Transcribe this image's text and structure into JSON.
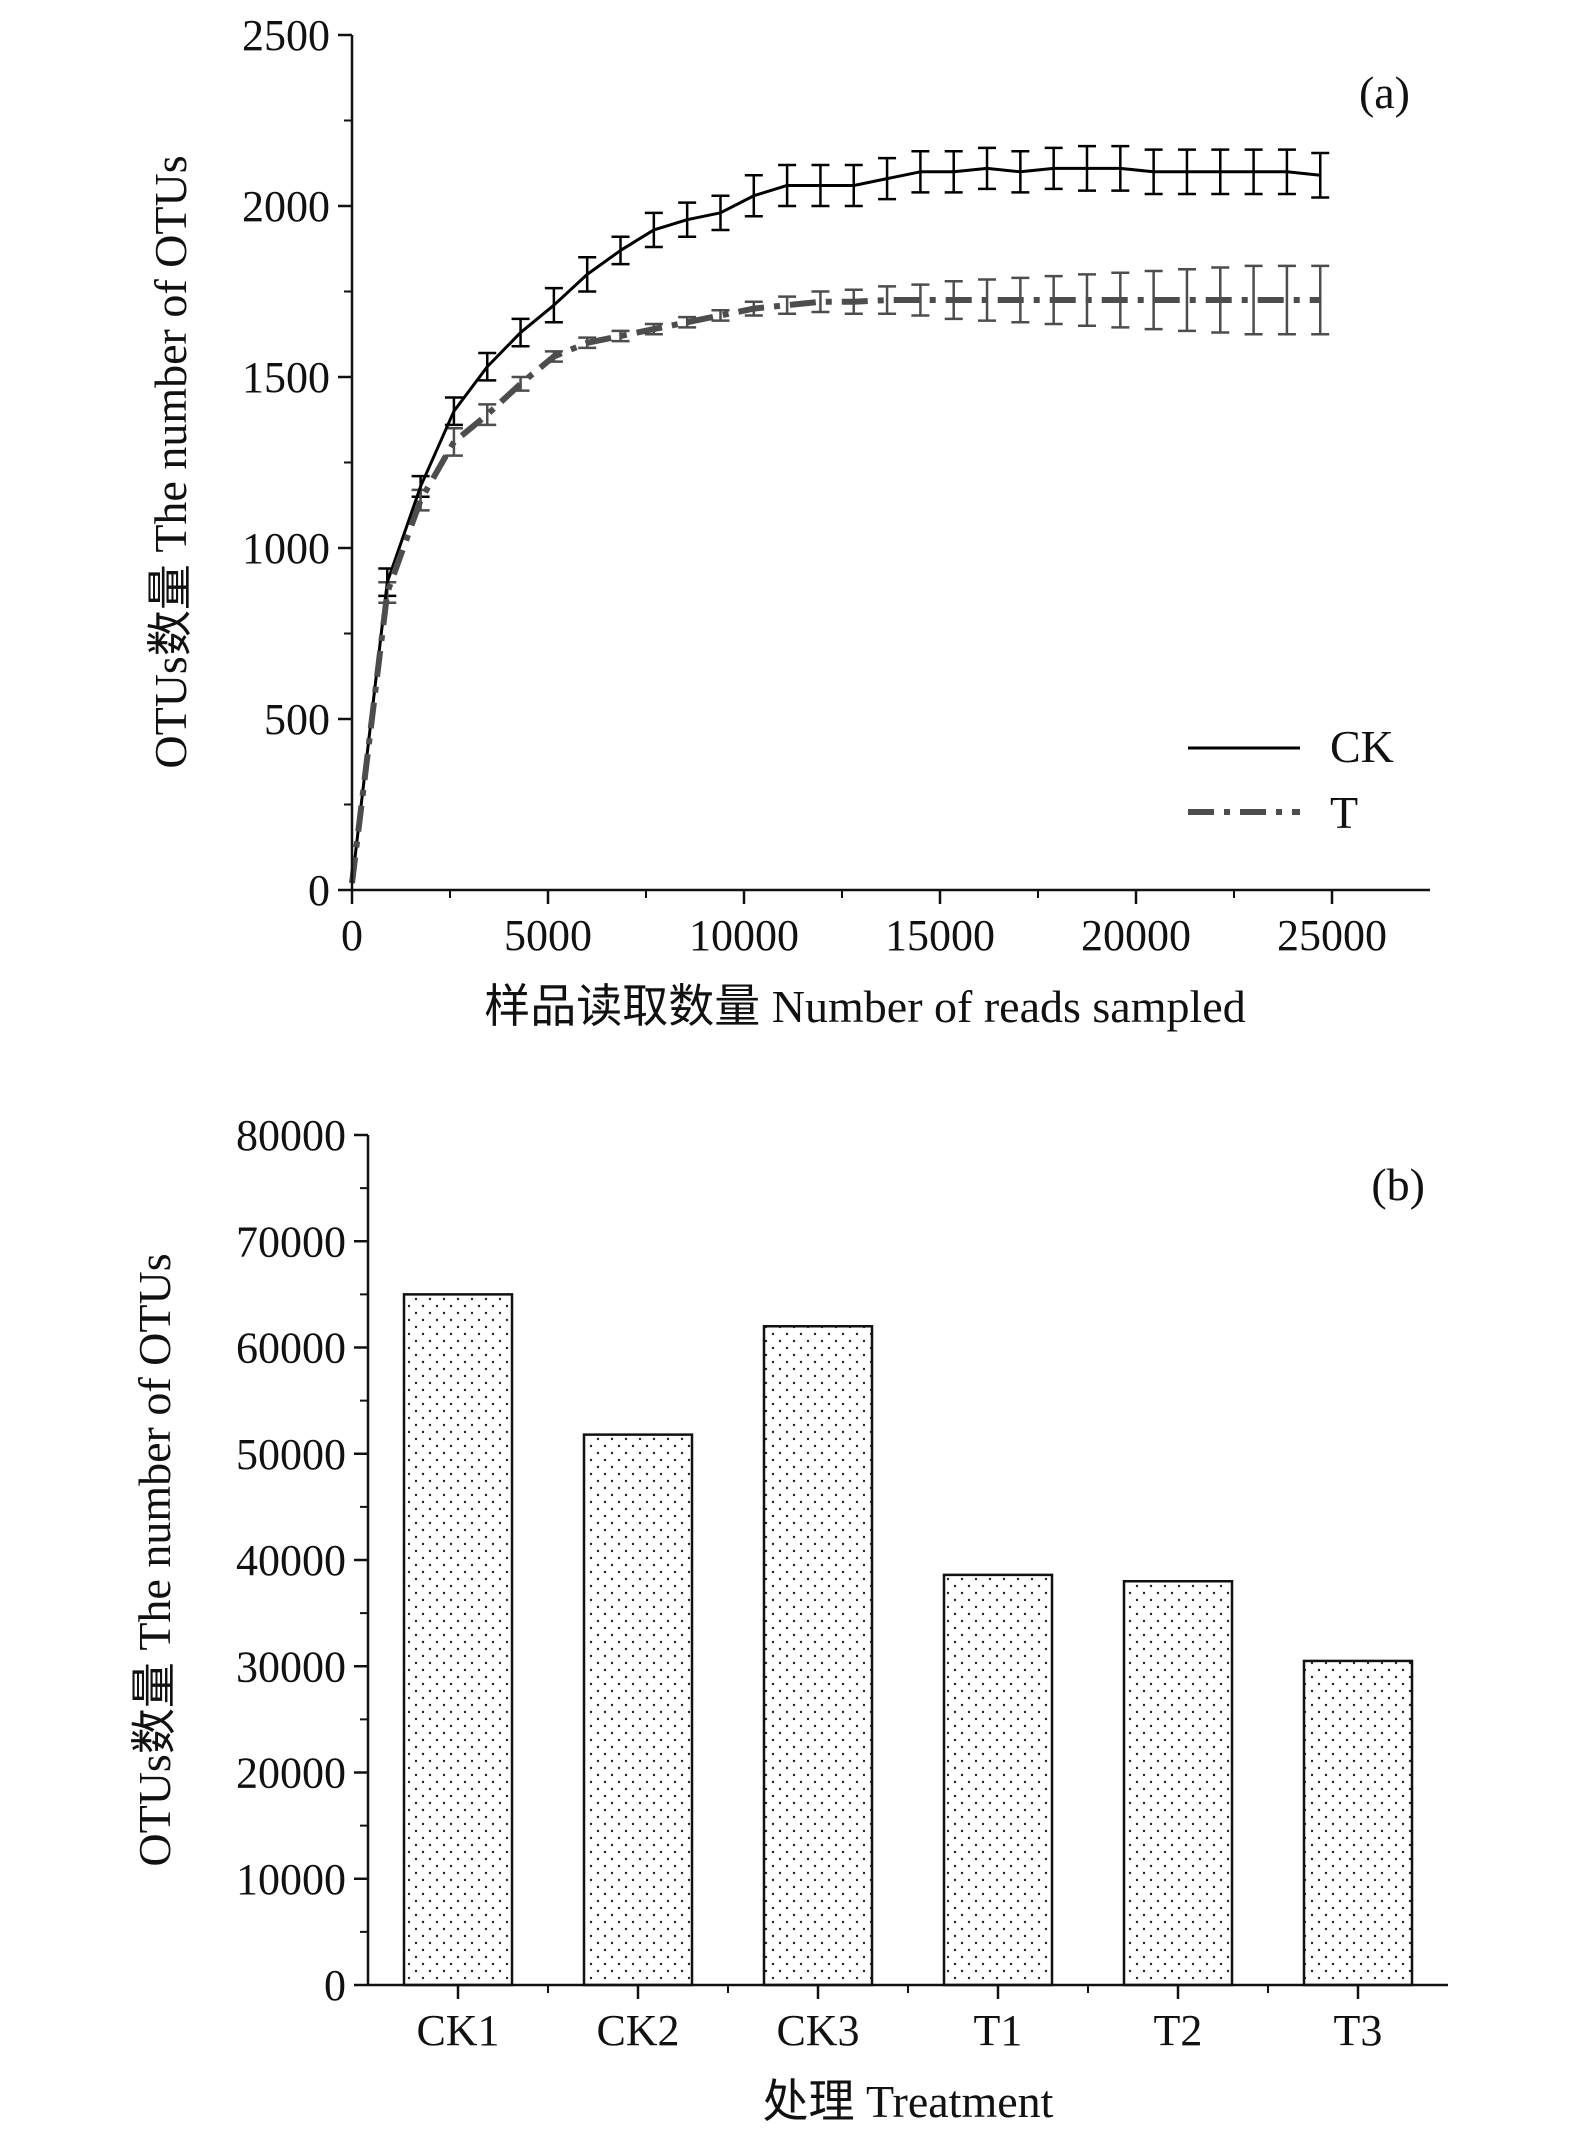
{
  "chart_data": [
    {
      "type": "line",
      "panel_label": "(a)",
      "xlabel": "样品读取数量 Number of reads sampled",
      "ylabel": "OTUs数量 The number of OTUs",
      "xlim": [
        0,
        27500
      ],
      "ylim": [
        0,
        2500
      ],
      "x_ticks": [
        0,
        5000,
        10000,
        15000,
        20000,
        25000
      ],
      "y_ticks": [
        0,
        500,
        1000,
        1500,
        2000,
        2500
      ],
      "legend_position": "bottom-right",
      "series": [
        {
          "name": "CK",
          "line_style": "solid",
          "color": "#000000",
          "x": [
            0,
            900,
            1750,
            2600,
            3450,
            4300,
            5150,
            6000,
            6850,
            7700,
            8550,
            9400,
            10250,
            11100,
            11950,
            12800,
            13650,
            14500,
            15350,
            16200,
            17050,
            17900,
            18750,
            19600,
            20450,
            21300,
            22150,
            23000,
            23850,
            24700
          ],
          "y": [
            20,
            900,
            1180,
            1400,
            1530,
            1630,
            1710,
            1800,
            1870,
            1930,
            1960,
            1980,
            2030,
            2060,
            2060,
            2060,
            2080,
            2100,
            2100,
            2110,
            2100,
            2110,
            2110,
            2110,
            2100,
            2100,
            2100,
            2100,
            2100,
            2090
          ],
          "error": [
            0,
            40,
            30,
            40,
            40,
            40,
            50,
            50,
            40,
            50,
            50,
            50,
            60,
            60,
            60,
            60,
            60,
            60,
            60,
            60,
            60,
            60,
            65,
            65,
            65,
            65,
            65,
            65,
            65,
            65
          ]
        },
        {
          "name": "T",
          "line_style": "dash-dot",
          "color": "#4d4d4d",
          "x": [
            0,
            900,
            1750,
            2600,
            3450,
            4300,
            5150,
            6000,
            6850,
            7700,
            8550,
            9400,
            10250,
            11100,
            11950,
            12800,
            13650,
            14500,
            15350,
            16200,
            17050,
            17900,
            18750,
            19600,
            20450,
            21300,
            22150,
            23000,
            23850,
            24700
          ],
          "y": [
            20,
            870,
            1140,
            1310,
            1390,
            1480,
            1560,
            1600,
            1620,
            1640,
            1660,
            1680,
            1700,
            1710,
            1720,
            1720,
            1725,
            1725,
            1725,
            1725,
            1725,
            1725,
            1725,
            1725,
            1725,
            1725,
            1725,
            1725,
            1725,
            1725
          ],
          "error": [
            0,
            30,
            30,
            40,
            30,
            20,
            15,
            15,
            15,
            15,
            15,
            15,
            20,
            25,
            30,
            35,
            40,
            45,
            55,
            60,
            65,
            70,
            75,
            80,
            85,
            90,
            95,
            100,
            100,
            100
          ]
        }
      ]
    },
    {
      "type": "bar",
      "panel_label": "(b)",
      "xlabel": "处理 Treatment",
      "ylabel": "OTUs数量 The number of OTUs",
      "ylim": [
        0,
        80000
      ],
      "y_ticks": [
        0,
        10000,
        20000,
        30000,
        40000,
        50000,
        60000,
        70000,
        80000
      ],
      "categories": [
        "CK1",
        "CK2",
        "CK3",
        "T1",
        "T2",
        "T3"
      ],
      "values": [
        65000,
        51800,
        62000,
        38600,
        38000,
        30500
      ],
      "fill": "stippled"
    }
  ]
}
